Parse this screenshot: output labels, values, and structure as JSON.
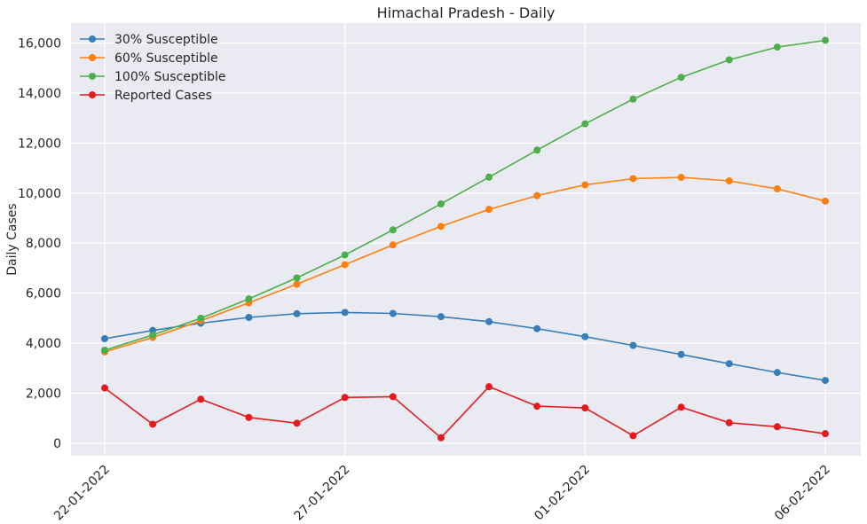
{
  "chart_data": {
    "type": "line",
    "title": "Himachal Pradesh - Daily",
    "xlabel": "",
    "ylabel": "Daily Cases",
    "x_ticks": [
      "22-01-2022",
      "27-01-2022",
      "01-02-2022",
      "06-02-2022"
    ],
    "x": [
      "22-01-2022",
      "23-01-2022",
      "24-01-2022",
      "25-01-2022",
      "26-01-2022",
      "27-01-2022",
      "28-01-2022",
      "29-01-2022",
      "30-01-2022",
      "31-01-2022",
      "01-02-2022",
      "02-02-2022",
      "03-02-2022",
      "04-02-2022",
      "05-02-2022",
      "06-02-2022"
    ],
    "ylim": [
      -500,
      16800
    ],
    "y_ticks": [
      0,
      2000,
      4000,
      6000,
      8000,
      10000,
      12000,
      14000,
      16000
    ],
    "y_tick_labels": [
      "0",
      "2,000",
      "4,000",
      "6,000",
      "8,000",
      "10,000",
      "12,000",
      "14,000",
      "16,000"
    ],
    "grid": true,
    "legend_position": "top-left",
    "series": [
      {
        "name": "30% Susceptible",
        "color": "#377eb8",
        "values": [
          4180,
          4510,
          4800,
          5030,
          5180,
          5230,
          5190,
          5060,
          4860,
          4580,
          4260,
          3910,
          3550,
          3180,
          2830,
          2510
        ]
      },
      {
        "name": "60% Susceptible",
        "color": "#ff7f0e",
        "values": [
          3650,
          4230,
          4900,
          5610,
          6360,
          7140,
          7930,
          8670,
          9350,
          9900,
          10330,
          10580,
          10630,
          10490,
          10170,
          9680
        ]
      },
      {
        "name": "100% Susceptible",
        "color": "#4daf4a",
        "values": [
          3720,
          4330,
          5000,
          5770,
          6610,
          7530,
          8530,
          9570,
          10640,
          11720,
          12770,
          13760,
          14630,
          15330,
          15840,
          16110
        ]
      },
      {
        "name": "Reported Cases",
        "color": "#e41a1c",
        "values": [
          2210,
          760,
          1760,
          1030,
          800,
          1830,
          1860,
          220,
          2260,
          1480,
          1410,
          300,
          1440,
          820,
          660,
          380
        ]
      }
    ]
  }
}
